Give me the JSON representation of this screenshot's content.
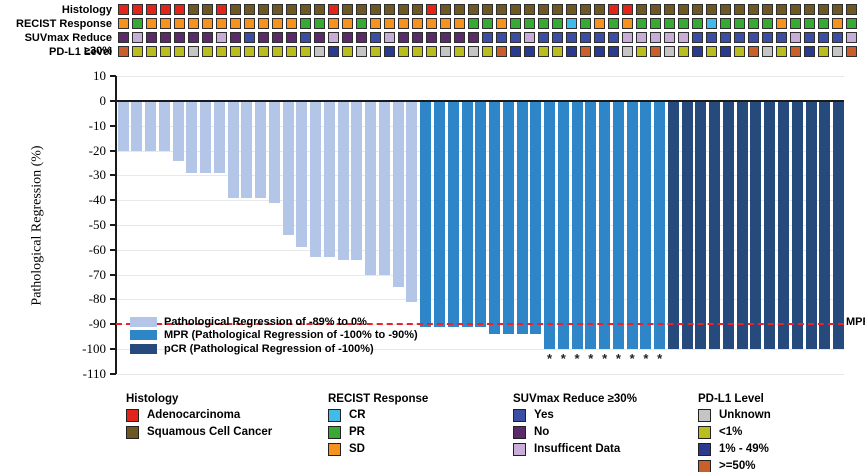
{
  "chart_data": {
    "type": "bar",
    "title": "",
    "xlabel": "",
    "ylabel": "Pathological Regression (%)",
    "ylim": [
      -110,
      10
    ],
    "y_ticks": [
      10,
      0,
      -10,
      -20,
      -30,
      -40,
      -50,
      -60,
      -70,
      -80,
      -90,
      -100,
      -110
    ],
    "grid": "horizontal-light",
    "reference_line": {
      "value": -90,
      "label": "MPR",
      "color": "#ee2128",
      "style": "dashed"
    },
    "values": [
      -20,
      -20,
      -20,
      -20,
      -24,
      -29,
      -29,
      -29,
      -39,
      -39,
      -39,
      -41,
      -54,
      -59,
      -63,
      -63,
      -64,
      -64,
      -70,
      -70,
      -75,
      -81,
      -91,
      -91,
      -91,
      -91,
      -91,
      -94,
      -94,
      -94,
      -94,
      -100,
      -100,
      -100,
      -100,
      -100,
      -100,
      -100,
      -100,
      -100,
      -100,
      -100,
      -100,
      -100,
      -100,
      -100,
      -100,
      -100,
      -100,
      -100,
      -100,
      -100,
      -100
    ],
    "classes": [
      "light",
      "light",
      "light",
      "light",
      "light",
      "light",
      "light",
      "light",
      "light",
      "light",
      "light",
      "light",
      "light",
      "light",
      "light",
      "light",
      "light",
      "light",
      "light",
      "light",
      "light",
      "light",
      "mpr",
      "mpr",
      "mpr",
      "mpr",
      "mpr",
      "mpr",
      "mpr",
      "mpr",
      "mpr",
      "mpr",
      "mpr",
      "mpr",
      "mpr",
      "mpr",
      "mpr",
      "mpr",
      "mpr",
      "mpr",
      "pcr",
      "pcr",
      "pcr",
      "pcr",
      "pcr",
      "pcr",
      "pcr",
      "pcr",
      "pcr",
      "pcr",
      "pcr",
      "pcr",
      "pcr"
    ],
    "class_colors": {
      "light": "#b3c6e7",
      "mpr": "#2e86c8",
      "pcr": "#274a7c"
    },
    "asterisk_bars": [
      32,
      33,
      34,
      35,
      36,
      37,
      38,
      39,
      40
    ],
    "legend_position": "inside-bottom-left",
    "legend": [
      {
        "class": "light",
        "label": "Pathological Regression of -89% to 0%"
      },
      {
        "class": "mpr",
        "label": "MPR (Pathological Regression of -100% to -90%)"
      },
      {
        "class": "pcr",
        "label": "pCR (Pathological Regression of -100%)"
      }
    ]
  },
  "annotation_tracks": [
    {
      "label": "Histology",
      "palette": {
        "A": "#e1251b",
        "S": "#6d5722"
      },
      "cells": [
        "A",
        "A",
        "A",
        "A",
        "A",
        "S",
        "S",
        "A",
        "S",
        "S",
        "S",
        "S",
        "S",
        "S",
        "S",
        "A",
        "S",
        "S",
        "S",
        "S",
        "S",
        "S",
        "A",
        "S",
        "S",
        "S",
        "S",
        "S",
        "S",
        "S",
        "S",
        "S",
        "S",
        "S",
        "S",
        "A",
        "A",
        "S",
        "S",
        "S",
        "S",
        "S",
        "S",
        "S",
        "S",
        "S",
        "S",
        "S",
        "S",
        "S",
        "S",
        "S",
        "S"
      ]
    },
    {
      "label": "RECIST Response",
      "palette": {
        "CR": "#41bbec",
        "PR": "#39a935",
        "SD": "#f6921e"
      },
      "cells": [
        "SD",
        "PR",
        "SD",
        "SD",
        "SD",
        "SD",
        "SD",
        "SD",
        "SD",
        "SD",
        "SD",
        "SD",
        "SD",
        "PR",
        "PR",
        "SD",
        "SD",
        "PR",
        "SD",
        "SD",
        "SD",
        "SD",
        "SD",
        "SD",
        "SD",
        "PR",
        "PR",
        "SD",
        "PR",
        "PR",
        "PR",
        "PR",
        "CR",
        "PR",
        "SD",
        "PR",
        "SD",
        "PR",
        "PR",
        "PR",
        "PR",
        "PR",
        "CR",
        "PR",
        "PR",
        "PR",
        "PR",
        "SD",
        "PR",
        "PR",
        "PR",
        "SD",
        "PR"
      ]
    },
    {
      "label": "SUVmax Reduce ≥30%",
      "palette": {
        "Y": "#3b4fa2",
        "N": "#5a2a6a",
        "I": "#c8add8"
      },
      "cells": [
        "N",
        "I",
        "N",
        "N",
        "N",
        "N",
        "N",
        "I",
        "N",
        "Y",
        "N",
        "N",
        "N",
        "Y",
        "N",
        "I",
        "N",
        "N",
        "Y",
        "I",
        "N",
        "N",
        "N",
        "N",
        "N",
        "N",
        "Y",
        "Y",
        "Y",
        "I",
        "Y",
        "Y",
        "Y",
        "Y",
        "Y",
        "Y",
        "I",
        "I",
        "I",
        "I",
        "I",
        "Y",
        "Y",
        "Y",
        "Y",
        "Y",
        "Y",
        "Y",
        "I",
        "Y",
        "Y",
        "Y",
        "I"
      ]
    },
    {
      "label": "PD-L1 Level",
      "palette": {
        "U": "#c5c5c5",
        "L": "#b9bd1d",
        "M": "#293b8f",
        "H": "#c95f2b"
      },
      "cells": [
        "H",
        "L",
        "L",
        "L",
        "L",
        "U",
        "L",
        "L",
        "L",
        "L",
        "L",
        "L",
        "L",
        "L",
        "U",
        "M",
        "L",
        "U",
        "L",
        "M",
        "L",
        "L",
        "L",
        "U",
        "L",
        "U",
        "L",
        "H",
        "M",
        "M",
        "L",
        "L",
        "M",
        "H",
        "M",
        "M",
        "U",
        "L",
        "H",
        "U",
        "L",
        "M",
        "L",
        "M",
        "L",
        "H",
        "U",
        "L",
        "H",
        "M",
        "L",
        "U",
        "H"
      ]
    }
  ],
  "bottom_legend": [
    {
      "title": "Histology",
      "items": [
        {
          "key": "A",
          "label": "Adenocarcinoma"
        },
        {
          "key": "S",
          "label": "Squamous Cell Cancer"
        }
      ]
    },
    {
      "title": "RECIST Response",
      "items": [
        {
          "key": "CR",
          "label": "CR"
        },
        {
          "key": "PR",
          "label": "PR"
        },
        {
          "key": "SD",
          "label": "SD"
        }
      ]
    },
    {
      "title": "SUVmax Reduce ≥30%",
      "items": [
        {
          "key": "Y",
          "label": "Yes"
        },
        {
          "key": "N",
          "label": "No"
        },
        {
          "key": "I",
          "label": "Insufficent Data"
        }
      ]
    },
    {
      "title": "PD-L1 Level",
      "items": [
        {
          "key": "U",
          "label": "Unknown"
        },
        {
          "key": "L",
          "label": "<1%"
        },
        {
          "key": "M",
          "label": "1% - 49%"
        },
        {
          "key": "H",
          "label": ">=50%"
        }
      ]
    }
  ]
}
